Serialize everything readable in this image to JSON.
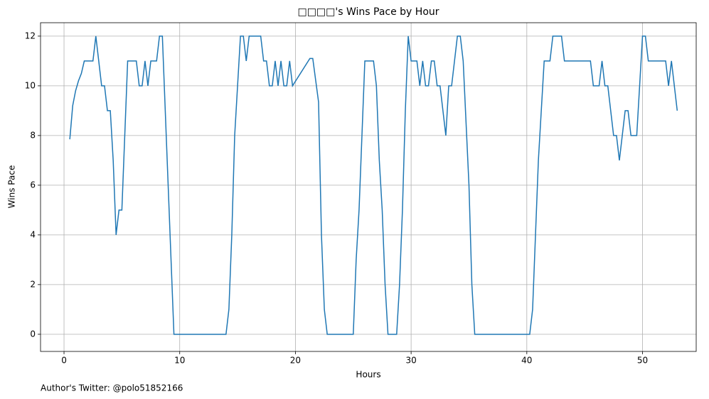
{
  "chart_data": {
    "type": "line",
    "title": "□□□□'s Wins Pace by Hour",
    "x_label": "Hours",
    "y_label": "Wins Pace",
    "annotation": "Author's Twitter: @polo51852166",
    "x": [
      0.5,
      0.75,
      1.0,
      1.25,
      1.5,
      1.75,
      2.0,
      2.5,
      2.75,
      3.0,
      3.25,
      3.5,
      3.75,
      4.0,
      4.25,
      4.5,
      4.75,
      5.0,
      5.25,
      5.5,
      6.25,
      6.5,
      6.75,
      7.0,
      7.25,
      7.5,
      8.0,
      8.25,
      8.5,
      8.75,
      9.0,
      9.25,
      9.5,
      14.0,
      14.25,
      14.5,
      14.75,
      15.0,
      15.25,
      15.5,
      15.75,
      16.0,
      17.0,
      17.25,
      17.5,
      17.75,
      18.0,
      18.25,
      18.5,
      18.75,
      19.0,
      19.25,
      19.5,
      19.75,
      21.25,
      21.5,
      22.0,
      22.25,
      22.5,
      22.75,
      25.0,
      25.25,
      25.5,
      25.75,
      26.0,
      26.75,
      27.0,
      27.25,
      27.5,
      27.75,
      28.0,
      28.75,
      29.0,
      29.25,
      29.5,
      29.75,
      30.0,
      30.5,
      30.75,
      31.0,
      31.25,
      31.5,
      31.75,
      32.0,
      32.25,
      32.5,
      33.0,
      33.25,
      33.5,
      34.0,
      34.25,
      34.5,
      35.0,
      35.25,
      35.5,
      40.25,
      40.5,
      40.75,
      41.0,
      41.25,
      41.5,
      42.0,
      42.25,
      43.0,
      43.25,
      45.5,
      45.75,
      46.25,
      46.5,
      46.75,
      47.0,
      47.5,
      47.75,
      48.0,
      48.5,
      48.75,
      49.0,
      49.5,
      49.75,
      50.0,
      50.25,
      50.5,
      52.0,
      52.25,
      52.5,
      53.0
    ],
    "series": [
      {
        "name": "Wins Pace",
        "color": "#1f77b4",
        "values": [
          7.85,
          9.2,
          9.8,
          10.2,
          10.5,
          11,
          11,
          11,
          12,
          11,
          10,
          10,
          9,
          9,
          7,
          4,
          5,
          5,
          8,
          11,
          11,
          10,
          10,
          11,
          10,
          11,
          11,
          12,
          12,
          9,
          6,
          3,
          0,
          0,
          1,
          4,
          8,
          10,
          12,
          12,
          11,
          12,
          12,
          11,
          11,
          10,
          10,
          11,
          10,
          11,
          10,
          10,
          11,
          10,
          11.1,
          11.1,
          9.35,
          4,
          1,
          0,
          0,
          3,
          5,
          8,
          11,
          11,
          10,
          7,
          5,
          2,
          0,
          0,
          2,
          5,
          9,
          12,
          11,
          11,
          10,
          11,
          10,
          10,
          11,
          11,
          10,
          10,
          8,
          10,
          10,
          12,
          12,
          11,
          6,
          2,
          0,
          0,
          1,
          4,
          7,
          9,
          11,
          11,
          12,
          12,
          11,
          11,
          10,
          10,
          11,
          10,
          10,
          8,
          8,
          7,
          9,
          9,
          8,
          8,
          10,
          12,
          12,
          11,
          11,
          10,
          11,
          9
        ]
      }
    ],
    "xlim": [
      -2.03,
      54.64
    ],
    "ylim": [
      -0.69,
      12.54
    ],
    "xticks": [
      0,
      10,
      20,
      30,
      40,
      50
    ],
    "yticks": [
      0,
      2,
      4,
      6,
      8,
      10,
      12
    ],
    "grid": true
  }
}
